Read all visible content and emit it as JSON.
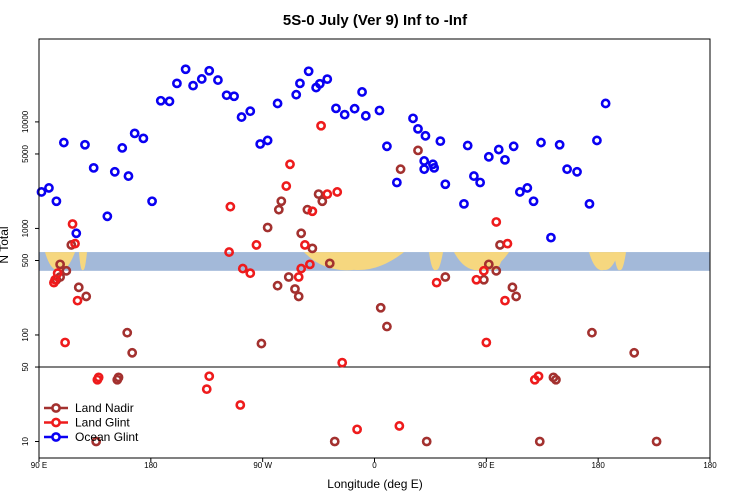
{
  "chart_data": {
    "type": "scatter",
    "title": "5S-0 July (Ver 9)   Inf to -Inf",
    "xlabel": "Longitude (deg E)",
    "ylabel": "N Total",
    "yscale": "log",
    "xlim": [
      0,
      540
    ],
    "ylim": [
      7,
      60000
    ],
    "xticks": [
      {
        "x": 0,
        "label": "90 E"
      },
      {
        "x": 90,
        "label": "180"
      },
      {
        "x": 180,
        "label": "90 W"
      },
      {
        "x": 270,
        "label": "0"
      },
      {
        "x": 360,
        "label": "90 E"
      },
      {
        "x": 450,
        "label": "180"
      }
    ],
    "yticks": [
      {
        "y": 10,
        "label": "10"
      },
      {
        "y": 50,
        "label": "50"
      },
      {
        "y": 100,
        "label": "100"
      },
      {
        "y": 500,
        "label": "500"
      },
      {
        "y": 1000,
        "label": "1000"
      },
      {
        "y": 5000,
        "label": "5000"
      },
      {
        "y": 10000,
        "label": "10000"
      }
    ],
    "reference_line_y": 50,
    "map_strip": {
      "y_range": [
        400,
        600
      ],
      "ocean_color": "#a3b9d9",
      "land_color": "#f6d77f"
    },
    "legend_position": "bottom-left",
    "series": [
      {
        "name": "Land Nadir",
        "color": "#a3312f",
        "x": [
          14,
          17,
          17,
          22,
          26,
          32,
          38,
          46,
          63,
          64,
          71,
          75,
          179,
          184,
          192,
          193,
          195,
          201,
          206,
          209,
          211,
          216,
          220,
          225,
          228,
          234,
          238,
          275,
          280,
          291,
          305,
          312,
          327,
          358,
          362,
          368,
          371,
          381,
          384,
          403,
          414,
          416,
          445,
          479,
          497
        ],
        "y": [
          330,
          350,
          460,
          400,
          700,
          280,
          230,
          10,
          38,
          40,
          105,
          68,
          83,
          1020,
          290,
          1500,
          1800,
          350,
          270,
          230,
          900,
          1500,
          650,
          2100,
          1800,
          470,
          10,
          180,
          120,
          3600,
          5400,
          10,
          350,
          330,
          460,
          400,
          700,
          280,
          230,
          10,
          40,
          38,
          105,
          68,
          10
        ]
      },
      {
        "name": "Land Glint",
        "color": "#ee1b1c",
        "x": [
          12,
          13,
          15,
          21,
          27,
          31,
          29,
          48,
          47,
          135,
          137,
          154,
          153,
          162,
          164,
          170,
          175,
          199,
          202,
          209,
          211,
          214,
          218,
          220,
          227,
          232,
          240,
          244,
          256,
          290,
          320,
          352,
          358,
          360,
          368,
          375,
          377,
          399,
          402
        ],
        "y": [
          310,
          330,
          380,
          85,
          1100,
          210,
          720,
          40,
          38,
          31,
          41,
          1600,
          600,
          22,
          420,
          380,
          700,
          2500,
          4000,
          350,
          420,
          700,
          460,
          1450,
          9200,
          2100,
          2200,
          55,
          13,
          14,
          310,
          330,
          400,
          85,
          1150,
          210,
          720,
          38,
          41
        ]
      },
      {
        "name": "Ocean Glint",
        "color": "#0a00f2",
        "x": [
          2,
          8,
          14,
          20,
          30,
          37,
          44,
          55,
          61,
          67,
          72,
          77,
          84,
          91,
          98,
          105,
          111,
          118,
          124,
          131,
          137,
          144,
          151,
          157,
          163,
          170,
          178,
          184,
          192,
          207,
          210,
          217,
          223,
          226,
          232,
          239,
          246,
          254,
          260,
          263,
          274,
          280,
          288,
          301,
          305,
          310,
          310,
          311,
          317,
          318,
          323,
          327,
          342,
          345,
          350,
          355,
          362,
          370,
          375,
          382,
          387,
          393,
          398,
          404,
          412,
          419,
          425,
          433,
          443,
          449,
          456
        ],
        "y": [
          2200,
          2400,
          1800,
          6400,
          900,
          6100,
          3700,
          1300,
          3400,
          5700,
          3100,
          7800,
          7000,
          1800,
          15800,
          15600,
          23000,
          31200,
          21900,
          25300,
          30200,
          24700,
          17800,
          17400,
          11100,
          12600,
          6200,
          6700,
          14900,
          18000,
          23000,
          29900,
          21000,
          22800,
          25200,
          13400,
          11700,
          13300,
          19100,
          11400,
          12800,
          5900,
          2700,
          10800,
          8600,
          3600,
          4300,
          7400,
          4000,
          3700,
          6600,
          2600,
          1700,
          6000,
          3100,
          2700,
          4700,
          5500,
          4400,
          5900,
          2200,
          2400,
          1800,
          6400,
          820,
          6100,
          3600,
          3400,
          1700,
          6700,
          14900
        ]
      }
    ]
  }
}
